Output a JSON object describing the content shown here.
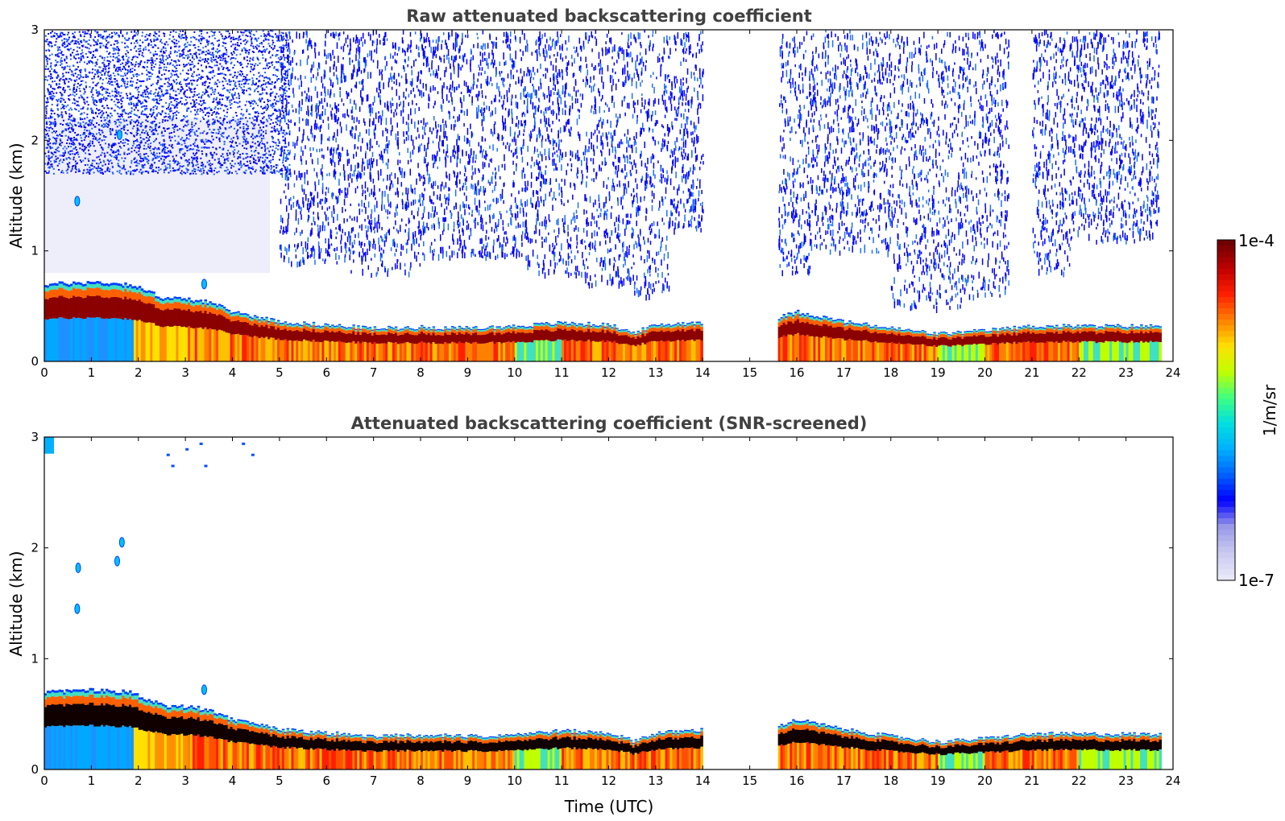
{
  "chart_data": [
    {
      "type": "heatmap",
      "title": "Raw attenuated backscattering coefficient",
      "xlabel": "",
      "ylabel": "Altitude (km)",
      "xlim": [
        0,
        24
      ],
      "ylim": [
        0,
        3
      ],
      "x_ticks": [
        "0",
        "1",
        "2",
        "3",
        "4",
        "5",
        "6",
        "7",
        "8",
        "9",
        "10",
        "11",
        "12",
        "13",
        "14",
        "15",
        "16",
        "17",
        "18",
        "19",
        "20",
        "21",
        "22",
        "23",
        "24"
      ],
      "y_ticks": [
        "0",
        "1",
        "2",
        "3"
      ],
      "data_gaps": [
        [
          14.0,
          15.6
        ]
      ],
      "data_end": 23.75,
      "boundary_layer_top_km": [
        [
          0,
          0.7
        ],
        [
          1,
          0.72
        ],
        [
          1.8,
          0.7
        ],
        [
          2.5,
          0.58
        ],
        [
          3.4,
          0.55
        ],
        [
          4,
          0.45
        ],
        [
          5,
          0.36
        ],
        [
          6,
          0.33
        ],
        [
          7,
          0.3
        ],
        [
          8,
          0.31
        ],
        [
          9,
          0.3
        ],
        [
          10,
          0.32
        ],
        [
          11,
          0.35
        ],
        [
          12,
          0.33
        ],
        [
          12.5,
          0.26
        ],
        [
          13,
          0.33
        ],
        [
          14,
          0.36
        ],
        [
          15.6,
          0.4
        ],
        [
          16,
          0.45
        ],
        [
          17,
          0.36
        ],
        [
          18,
          0.3
        ],
        [
          19,
          0.25
        ],
        [
          20,
          0.28
        ],
        [
          21,
          0.32
        ],
        [
          22,
          0.32
        ],
        [
          23,
          0.32
        ],
        [
          23.75,
          0.32
        ]
      ],
      "clouds": [
        [
          0.7,
          1.45
        ],
        [
          1.6,
          2.05
        ],
        [
          3.4,
          0.7
        ]
      ],
      "noisy_bands": [
        [
          5.0,
          6.5,
          0.9
        ],
        [
          6.5,
          8.0,
          0.8
        ],
        [
          8.0,
          10.2,
          0.95
        ],
        [
          10.2,
          11.5,
          0.8
        ],
        [
          11.5,
          12.5,
          0.7
        ],
        [
          12.5,
          13.3,
          0.6
        ],
        [
          13.3,
          14.0,
          1.2
        ],
        [
          15.6,
          16.3,
          0.8
        ],
        [
          16.3,
          18.0,
          1.0
        ],
        [
          18.0,
          19.5,
          0.5
        ],
        [
          19.5,
          20.5,
          0.6
        ],
        [
          21.0,
          21.8,
          0.8
        ],
        [
          21.8,
          23.7,
          1.1
        ]
      ]
    },
    {
      "type": "heatmap",
      "title": "Attenuated backscattering coefficient (SNR-screened)",
      "xlabel": "Time (UTC)",
      "ylabel": "Altitude (km)",
      "xlim": [
        0,
        24
      ],
      "ylim": [
        0,
        3
      ],
      "x_ticks": [
        "0",
        "1",
        "2",
        "3",
        "4",
        "5",
        "6",
        "7",
        "8",
        "9",
        "10",
        "11",
        "12",
        "13",
        "14",
        "15",
        "16",
        "17",
        "18",
        "19",
        "20",
        "21",
        "22",
        "23",
        "24"
      ],
      "y_ticks": [
        "0",
        "1",
        "2",
        "3"
      ],
      "data_gaps": [
        [
          14.0,
          15.6
        ]
      ],
      "data_end": 23.75,
      "clouds": [
        [
          0.7,
          1.45
        ],
        [
          0.72,
          1.82
        ],
        [
          1.65,
          2.05
        ],
        [
          1.55,
          1.88
        ],
        [
          3.4,
          0.72
        ]
      ]
    }
  ],
  "colorbar": {
    "label": "1/m/sr",
    "min_label": "1e-7",
    "max_label": "1e-4",
    "scale": "log",
    "colormap": [
      "#e8e8f8",
      "#c8c8f0",
      "#9898e8",
      "#0000ff",
      "#0060ff",
      "#00b0ff",
      "#00e0e0",
      "#40ff80",
      "#c0ff00",
      "#ffe000",
      "#ff8000",
      "#ff2000",
      "#c00000",
      "#700000"
    ]
  }
}
